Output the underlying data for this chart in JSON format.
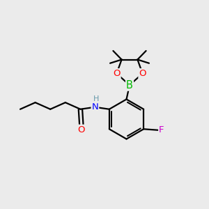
{
  "background_color": "#ebebeb",
  "atom_colors": {
    "C": "#000000",
    "H": "#6699aa",
    "N": "#0000ff",
    "O": "#ff0000",
    "B": "#00bb00",
    "F": "#cc00cc"
  },
  "bond_color": "#000000",
  "bond_width": 1.6,
  "font_size_atom": 9.5,
  "font_size_H": 8.0
}
